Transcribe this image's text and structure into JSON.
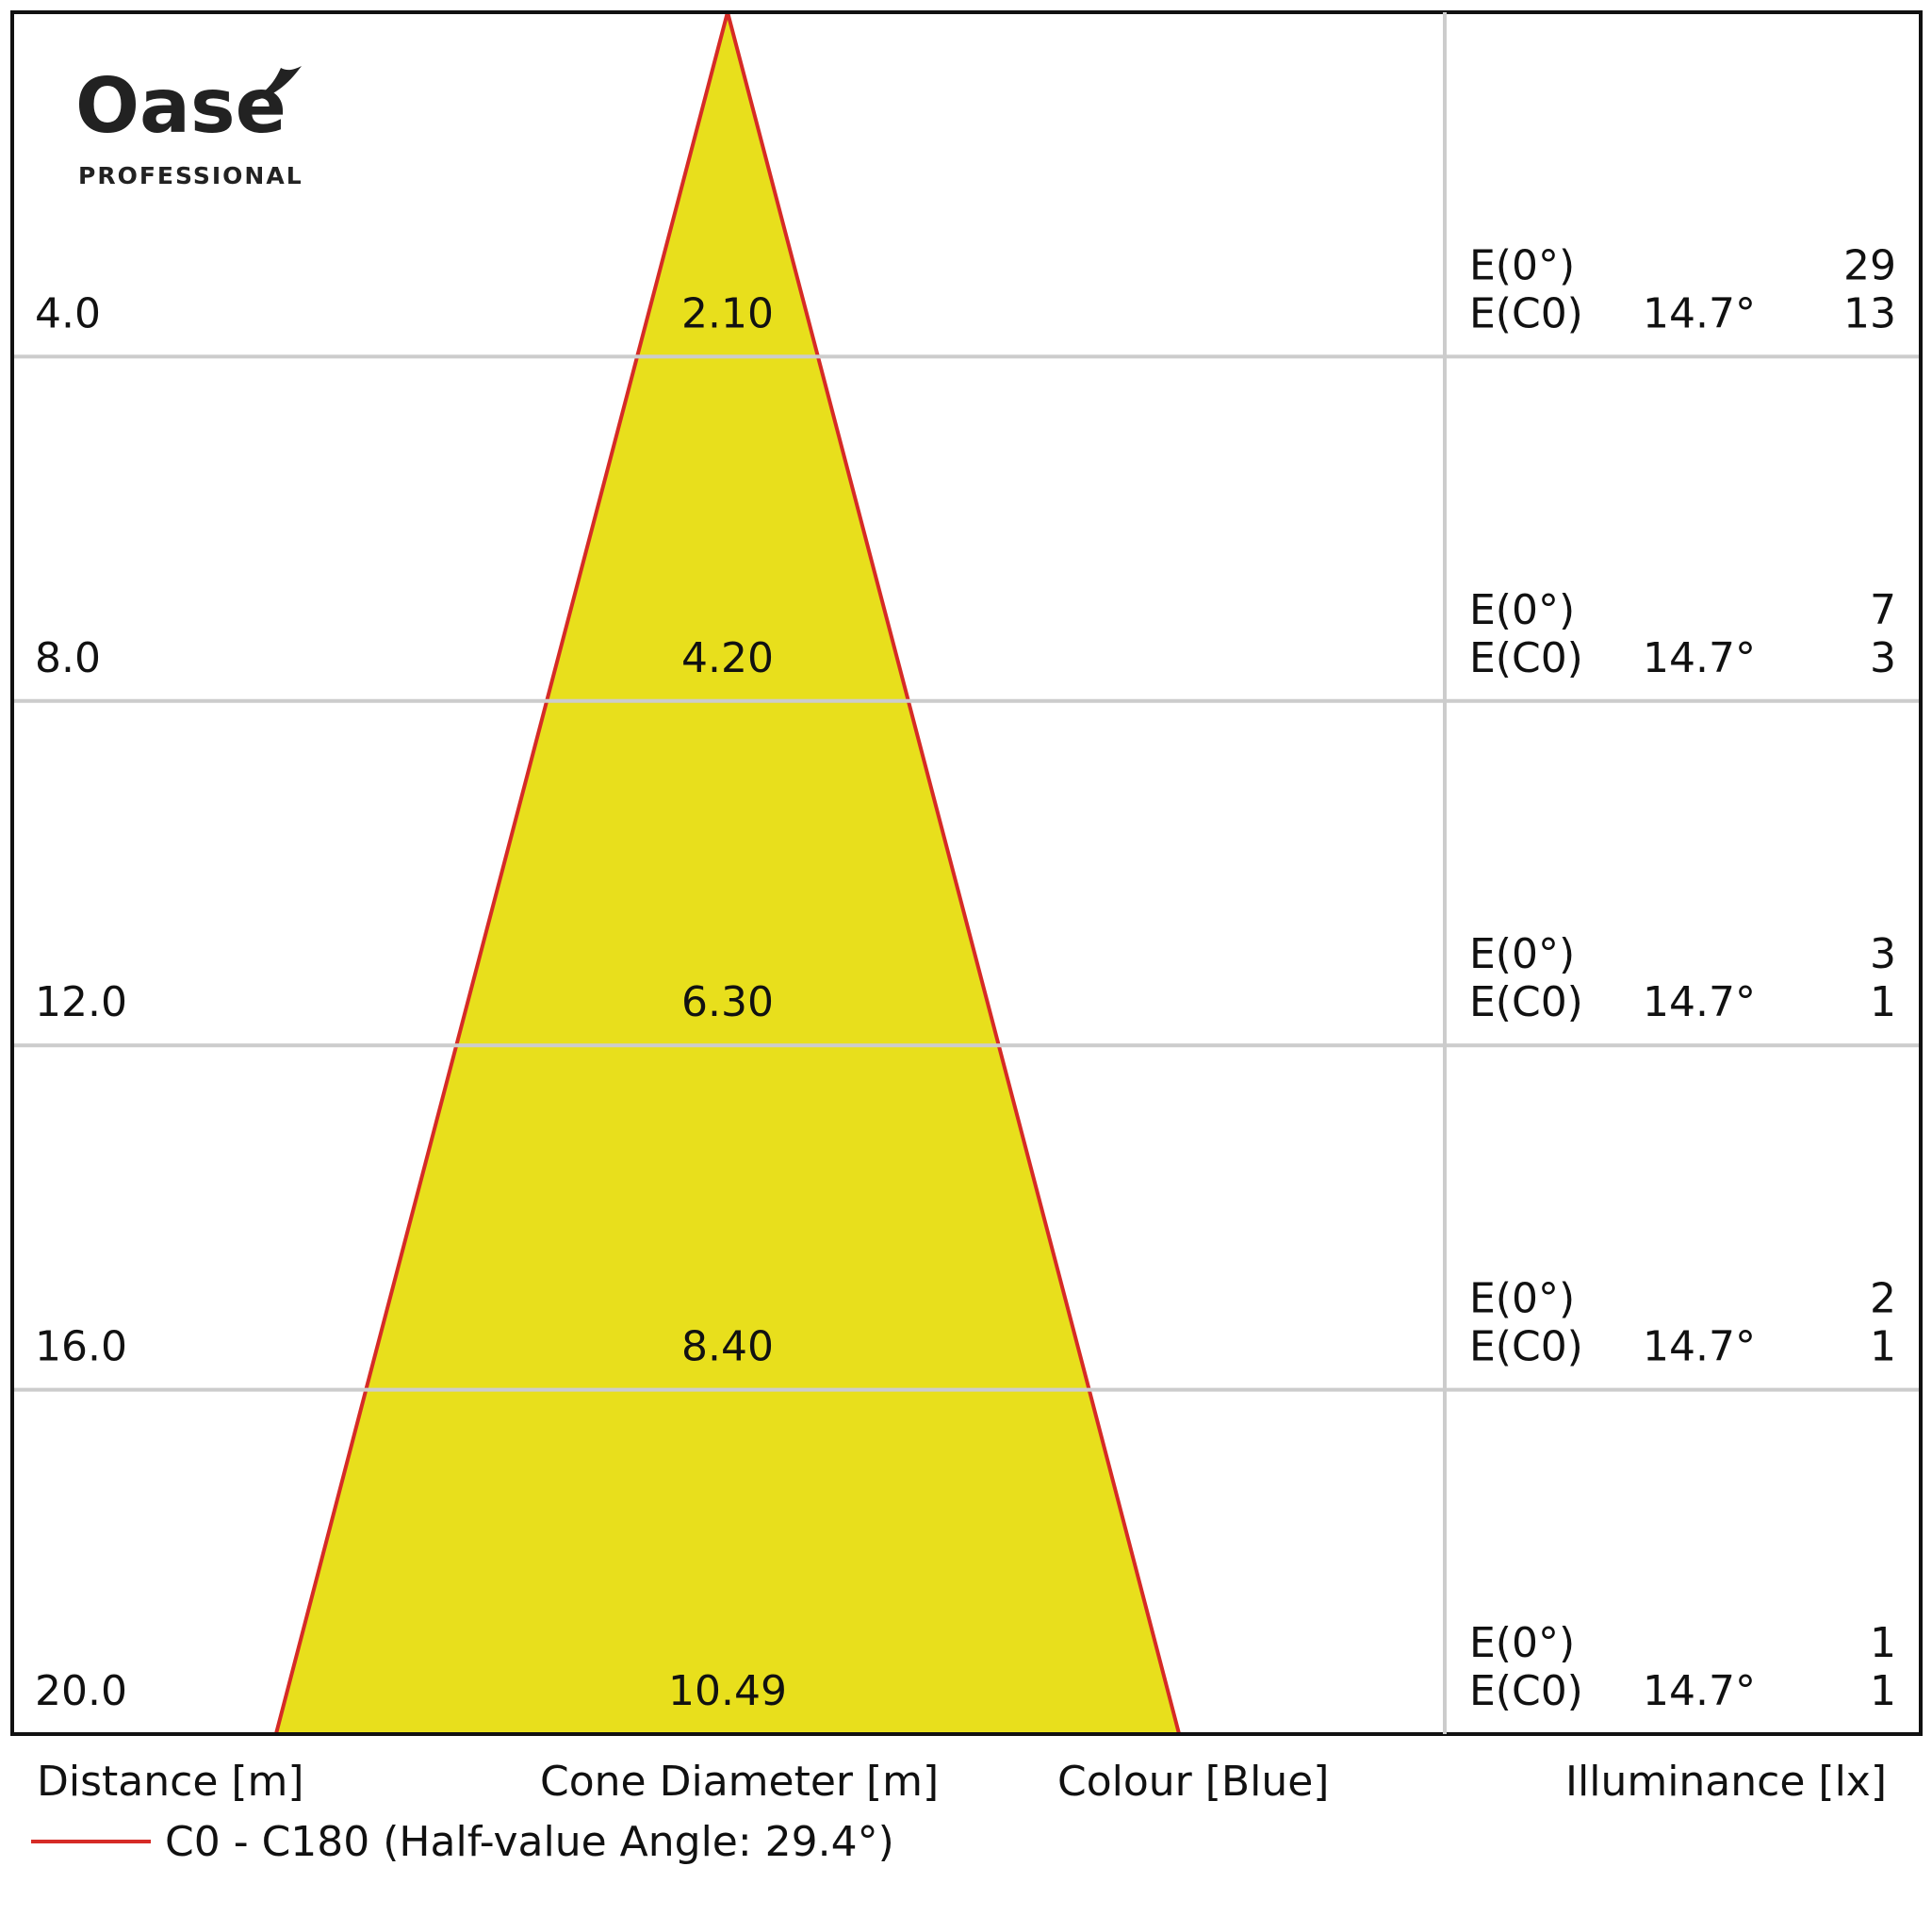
{
  "logo": {
    "name": "Oase",
    "tagline": "PROFESSIONAL"
  },
  "rows": [
    {
      "distance": "4.0",
      "diameter": "2.10",
      "e0_label": "E(0°)",
      "e0": 29,
      "ec0_label": "E(C0)",
      "angle": "14.7°",
      "ec0": 13
    },
    {
      "distance": "8.0",
      "diameter": "4.20",
      "e0_label": "E(0°)",
      "e0": 7,
      "ec0_label": "E(C0)",
      "angle": "14.7°",
      "ec0": 3
    },
    {
      "distance": "12.0",
      "diameter": "6.30",
      "e0_label": "E(0°)",
      "e0": 3,
      "ec0_label": "E(C0)",
      "angle": "14.7°",
      "ec0": 1
    },
    {
      "distance": "16.0",
      "diameter": "8.40",
      "e0_label": "E(0°)",
      "e0": 2,
      "ec0_label": "E(C0)",
      "angle": "14.7°",
      "ec0": 1
    },
    {
      "distance": "20.0",
      "diameter": "10.49",
      "e0_label": "E(0°)",
      "e0": 1,
      "ec0_label": "E(C0)",
      "angle": "14.7°",
      "ec0": 1
    }
  ],
  "footer": {
    "distance": "Distance [m]",
    "diameter": "Cone Diameter [m]",
    "colour": "Colour [Blue]",
    "illuminance": "Illuminance [lx]"
  },
  "legend": {
    "label": "C0 - C180 (Half-value Angle: 29.4°)"
  }
}
